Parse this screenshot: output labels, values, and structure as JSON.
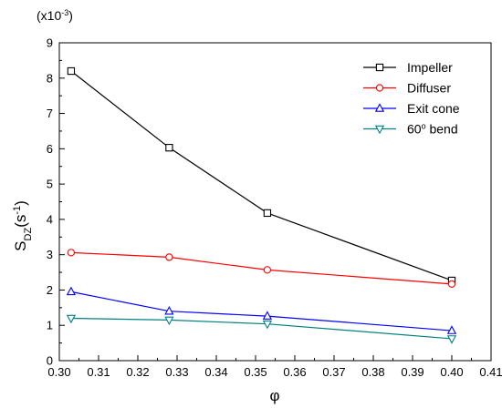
{
  "chart_data": {
    "type": "line",
    "xlabel": "φ",
    "ylabel": {
      "main": "S",
      "sub": "DZ",
      "open": "(s",
      "sup": "-1",
      "close": ")"
    },
    "multiplier": {
      "prefix": "(x10",
      "sup": "-3",
      "suffix": ")"
    },
    "xlim": [
      0.3,
      0.41
    ],
    "ylim": [
      0,
      9
    ],
    "xticks": [
      "0.30",
      "0.31",
      "0.32",
      "0.33",
      "0.34",
      "0.35",
      "0.36",
      "0.37",
      "0.38",
      "0.39",
      "0.40",
      "0.41"
    ],
    "yticks": [
      "0",
      "1",
      "2",
      "3",
      "4",
      "5",
      "6",
      "7",
      "8",
      "9"
    ],
    "grid": false,
    "legend_position": "top-right",
    "x": [
      0.303,
      0.328,
      0.353,
      0.4
    ],
    "series": [
      {
        "name": "Impeller",
        "values": [
          8.2,
          6.03,
          4.18,
          2.27
        ],
        "color": "#000000",
        "marker": "square"
      },
      {
        "name": "Diffuser",
        "values": [
          3.06,
          2.93,
          2.57,
          2.17
        ],
        "color": "#ff0000",
        "marker": "circle"
      },
      {
        "name": "Exit cone",
        "values": [
          1.95,
          1.4,
          1.26,
          0.85
        ],
        "color": "#0000ff",
        "marker": "triangle-up"
      },
      {
        "name": "60° bend",
        "label_main": "60",
        "label_sup": "o",
        "label_rest": " bend",
        "values": [
          1.2,
          1.15,
          1.04,
          0.62
        ],
        "color": "#008080",
        "marker": "triangle-down"
      }
    ]
  }
}
